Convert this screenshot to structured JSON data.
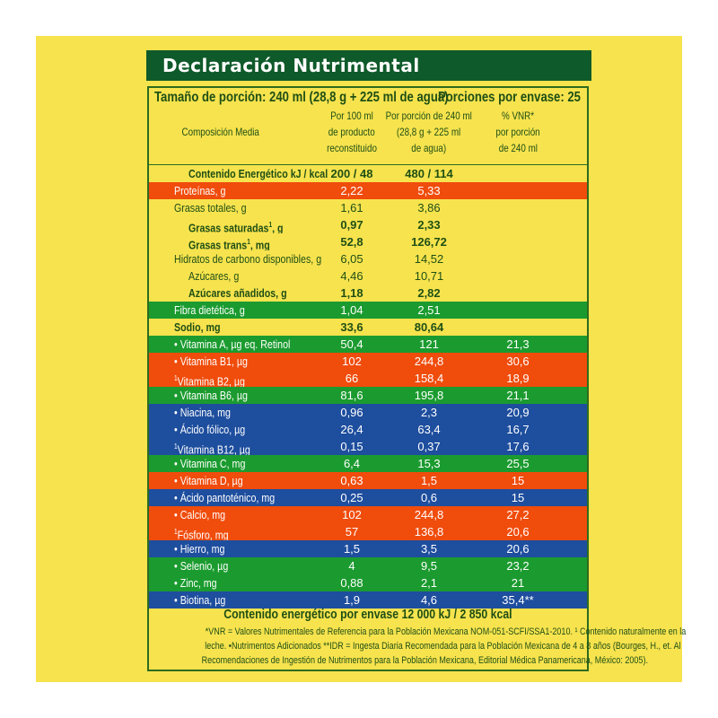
{
  "title": "Declaración Nutrimental",
  "serving_size": "Tamaño de porción: 240 ml (28,8 g + 225 ml de agua)",
  "portions": "Porciones por envase: 25",
  "headers": {
    "composition": "Composición Media",
    "per100": [
      "Por 100 ml",
      "de producto",
      "reconstituido"
    ],
    "perportion": [
      "Por porción de 240 ml",
      "(28,8 g + 225 ml",
      "de agua)"
    ],
    "vnr": [
      "% VNR*",
      "por porción",
      "de 240 ml"
    ]
  },
  "colors": {
    "green": "#1b9b2f",
    "orange": "#f04c0c",
    "blue": "#1e4e9e",
    "yellow": "#f7e34e",
    "title_bar": "#0f5a2a",
    "text": "#1f4f14"
  },
  "rows": [
    {
      "label": "Contenido Energético kJ / kcal",
      "v100": "200 / 48",
      "vport": "480 / 114",
      "vnr": "",
      "color": "yellow",
      "bold": true,
      "indent": 1
    },
    {
      "label": "Proteínas, g",
      "v100": "2,22",
      "vport": "5,33",
      "vnr": "",
      "color": "orange"
    },
    {
      "label": "Grasas totales, g",
      "v100": "1,61",
      "vport": "3,86",
      "vnr": "",
      "color": "yellow"
    },
    {
      "label": "Grasas saturadas",
      "sup": "1",
      "suffix": ", g",
      "v100": "0,97",
      "vport": "2,33",
      "vnr": "",
      "color": "yellow",
      "bold": true,
      "indent": 1
    },
    {
      "label": "Grasas trans",
      "sup": "1",
      "suffix": ", mg",
      "v100": "52,8",
      "vport": "126,72",
      "vnr": "",
      "color": "yellow",
      "bold": true,
      "indent": 1
    },
    {
      "label": "Hidratos de carbono disponibles, g",
      "v100": "6,05",
      "vport": "14,52",
      "vnr": "",
      "color": "yellow"
    },
    {
      "label": "Azúcares, g",
      "v100": "4,46",
      "vport": "10,71",
      "vnr": "",
      "color": "yellow",
      "indent": 1
    },
    {
      "label": "Azúcares añadidos, g",
      "v100": "1,18",
      "vport": "2,82",
      "vnr": "",
      "color": "yellow",
      "bold": true,
      "indent": 1
    },
    {
      "label": "Fibra dietética, g",
      "v100": "1,04",
      "vport": "2,51",
      "vnr": "",
      "color": "green"
    },
    {
      "label": "Sodio, mg",
      "v100": "33,6",
      "vport": "80,64",
      "vnr": "",
      "color": "yellow",
      "bold": true
    },
    {
      "label": "• Vitamina A, µg eq. Retinol",
      "v100": "50,4",
      "vport": "121",
      "vnr": "21,3",
      "color": "green"
    },
    {
      "label": "• Vitamina B1,  µg",
      "v100": "102",
      "vport": "244,8",
      "vnr": "30,6",
      "color": "orange"
    },
    {
      "prefix_sup": "1",
      "label": "Vitamina B2,  µg",
      "v100": "66",
      "vport": "158,4",
      "vnr": "18,9",
      "color": "orange"
    },
    {
      "label": "• Vitamina B6,  µg",
      "v100": "81,6",
      "vport": "195,8",
      "vnr": "21,1",
      "color": "green"
    },
    {
      "label": "• Niacina, mg",
      "v100": "0,96",
      "vport": "2,3",
      "vnr": "20,9",
      "color": "blue"
    },
    {
      "label": "• Ácido fólico,  µg",
      "v100": "26,4",
      "vport": "63,4",
      "vnr": "16,7",
      "color": "blue"
    },
    {
      "prefix_sup": "1",
      "label": "Vitamina B12,  µg",
      "v100": "0,15",
      "vport": "0,37",
      "vnr": "17,6",
      "color": "blue"
    },
    {
      "label": "• Vitamina C,  mg",
      "v100": "6,4",
      "vport": "15,3",
      "vnr": "25,5",
      "color": "green"
    },
    {
      "label": "• Vitamina D,  µg",
      "v100": "0,63",
      "vport": "1,5",
      "vnr": "15",
      "color": "orange"
    },
    {
      "label": "• Ácido pantoténico,  mg",
      "v100": "0,25",
      "vport": "0,6",
      "vnr": "15",
      "color": "blue"
    },
    {
      "label": "• Calcio, mg",
      "v100": "102",
      "vport": "244,8",
      "vnr": "27,2",
      "color": "orange"
    },
    {
      "prefix_sup": "1",
      "label": "Fósforo, mg",
      "v100": "57",
      "vport": "136,8",
      "vnr": "20,6",
      "color": "orange"
    },
    {
      "label": "• Hierro, mg",
      "v100": "1,5",
      "vport": "3,5",
      "vnr": "20,6",
      "color": "blue"
    },
    {
      "label": "• Selenio,  µg",
      "v100": "4",
      "vport": "9,5",
      "vnr": "23,2",
      "color": "green"
    },
    {
      "label": "• Zinc, mg",
      "v100": "0,88",
      "vport": "2,1",
      "vnr": "21",
      "color": "green"
    },
    {
      "label": "• Biotina,  µg",
      "v100": "1,9",
      "vport": "4,6",
      "vnr": "35,4**",
      "color": "blue"
    }
  ],
  "energy_total": "Contenido energético por envase 12 000 kJ / 2 850 kcal",
  "notes": [
    "*VNR = Valores Nutrimentales de Referencia para la Población Mexicana NOM-051-SCFI/SSA1-2010. ¹ Contenido naturalmente en la",
    "leche. •Nutrimentos Adicionados    **IDR = Ingesta Diaria Recomendada para la Población Mexicana de 4 a 8 años (Bourges, H., et. Al",
    "Recomendaciones de Ingestión de Nutrimentos para la Población Mexicana, Editorial Médica Panamericana, México: 2005)."
  ]
}
